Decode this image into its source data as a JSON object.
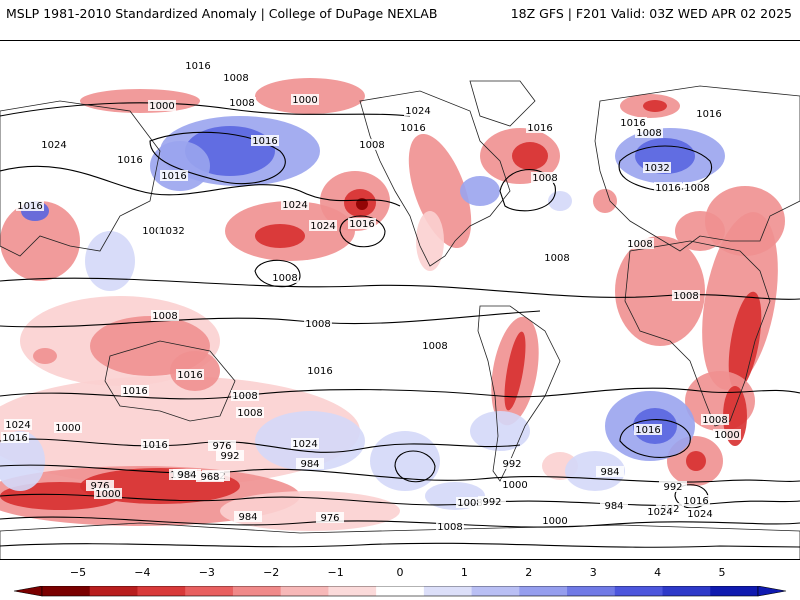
{
  "header": {
    "title": "MSLP 1981-2010 Standardized Anomaly | College of DuPage NEXLAB",
    "run_info": "18Z GFS | F201 Valid: 03Z WED APR 02 2025"
  },
  "map": {
    "contour_labels": [
      "1016",
      "1008",
      "1000",
      "1008",
      "1000",
      "1024",
      "1016",
      "1016",
      "1008",
      "1016",
      "1008",
      "1016",
      "1024",
      "1032",
      "1024",
      "1016",
      "1024",
      "1016",
      "1016",
      "1008",
      "1008",
      "1016",
      "1008",
      "1016",
      "1008",
      "1008",
      "1032",
      "1016",
      "1008",
      "1008",
      "1008",
      "1008",
      "1016",
      "1008",
      "1016",
      "1016",
      "1008",
      "1024",
      "1016",
      "1008",
      "1000",
      "1024",
      "1016",
      "976",
      "992",
      "984",
      "1000",
      "992",
      "984",
      "968",
      "976",
      "1000",
      "992",
      "1000",
      "984",
      "1008",
      "992",
      "984",
      "976",
      "1000",
      "1008",
      "984",
      "992",
      "1016",
      "1024",
      "1024",
      "1016",
      "1008",
      "1000",
      "992"
    ],
    "colors": {
      "ocean": "#ffffff",
      "coast": "#222222",
      "contour": "#000000",
      "neg_strong": "#8b0000",
      "neg_mid": "#d73030",
      "neg_light": "#f09090",
      "neg_faint": "#fbd0d0",
      "pos_faint": "#d4d8f8",
      "pos_light": "#9aa4ee",
      "pos_mid": "#5a66e0",
      "pos_strong": "#1f2bbf"
    }
  },
  "colorbar": {
    "ticks": [
      "−5",
      "−4",
      "−3",
      "−2",
      "−1",
      "0",
      "1",
      "2",
      "3",
      "4",
      "5"
    ],
    "colors": [
      "#7a0000",
      "#b81e1e",
      "#d83a3a",
      "#e86060",
      "#f08a8a",
      "#f7b8b8",
      "#fbdada",
      "#ffffff",
      "#dcdff9",
      "#b9bff4",
      "#959eee",
      "#707ae6",
      "#4c56dd",
      "#2e39c9",
      "#0f1ab0"
    ]
  }
}
